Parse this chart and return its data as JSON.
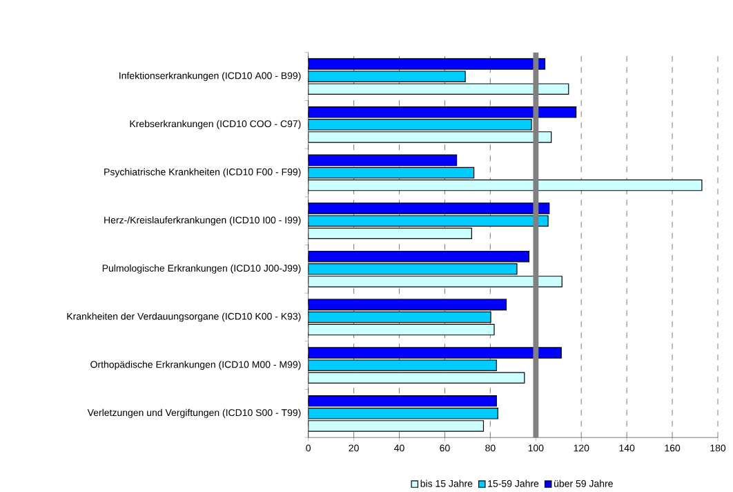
{
  "chart_data": {
    "type": "bar",
    "orientation": "horizontal",
    "categories": [
      "Infektionserkrankungen (ICD10 A00 - B99)",
      "Krebserkrankungen (ICD10 COO - C97)",
      "Psychiatrische Krankheiten (ICD10 F00 - F99)",
      "Herz-/Kreislauferkrankungen (ICD10 I00 - I99)",
      "Pulmologische Erkrankungen (ICD10 J00-J99)",
      "Krankheiten der Verdauungsorgane (ICD10 K00 - K93)",
      "Orthopädische Erkrankungen (ICD10 M00 - M99)",
      "Verletzungen und Vergiftungen (ICD10 S00 - T99)"
    ],
    "series": [
      {
        "name": "bis 15 Jahre",
        "color": "#ccffff",
        "values": [
          114.4,
          106.8,
          173,
          71.8,
          111.5,
          81.7,
          95,
          77
        ]
      },
      {
        "name": "15-59 Jahre",
        "color": "#00ccff",
        "values": [
          69,
          98.1,
          72.8,
          105.4,
          91.7,
          80.2,
          82.7,
          83.3
        ]
      },
      {
        "name": "über 59 Jahre",
        "color": "#0000ff",
        "values": [
          104,
          117.7,
          65.2,
          105.9,
          97,
          87,
          111.2,
          82.7
        ]
      }
    ],
    "xlim": [
      0,
      180
    ],
    "xticks": [
      0,
      20,
      40,
      60,
      80,
      100,
      120,
      140,
      160,
      180
    ],
    "grid": "x",
    "legend": "bottom",
    "ref_lines": [
      {
        "axis": "x",
        "value": 100,
        "color": "#808080"
      }
    ]
  }
}
